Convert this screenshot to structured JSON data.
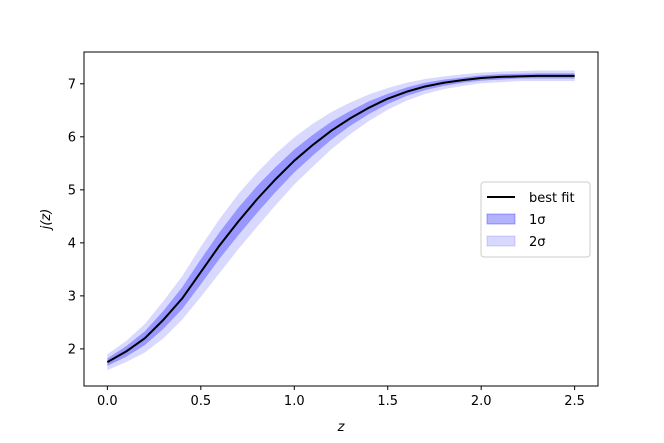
{
  "chart_data": {
    "type": "area",
    "title": "",
    "xlabel": "z",
    "ylabel": "j(z)",
    "xlim": [
      -0.125,
      2.625
    ],
    "ylim": [
      1.3,
      7.6
    ],
    "xticks": [
      0.0,
      0.5,
      1.0,
      1.5,
      2.0,
      2.5
    ],
    "xtick_labels": [
      "0.0",
      "0.5",
      "1.0",
      "1.5",
      "2.0",
      "2.5"
    ],
    "yticks": [
      2,
      3,
      4,
      5,
      6,
      7
    ],
    "ytick_labels": [
      "2",
      "3",
      "4",
      "5",
      "6",
      "7"
    ],
    "grid": false,
    "legend_position": "center-right",
    "x": [
      0.0,
      0.1,
      0.2,
      0.3,
      0.4,
      0.5,
      0.6,
      0.7,
      0.8,
      0.9,
      1.0,
      1.1,
      1.2,
      1.3,
      1.4,
      1.5,
      1.6,
      1.7,
      1.8,
      1.9,
      2.0,
      2.1,
      2.2,
      2.3,
      2.4,
      2.5
    ],
    "series": [
      {
        "name": "best fit",
        "kind": "line",
        "color": "#000000",
        "values": [
          1.75,
          1.95,
          2.2,
          2.55,
          2.95,
          3.45,
          3.95,
          4.4,
          4.82,
          5.2,
          5.55,
          5.85,
          6.12,
          6.35,
          6.55,
          6.72,
          6.85,
          6.95,
          7.02,
          7.07,
          7.11,
          7.13,
          7.14,
          7.15,
          7.15,
          7.15
        ]
      },
      {
        "name": "1σ",
        "kind": "band",
        "color": "#0000ff",
        "opacity": 0.3,
        "lower": [
          1.68,
          1.85,
          2.07,
          2.38,
          2.75,
          3.22,
          3.7,
          4.14,
          4.56,
          4.96,
          5.33,
          5.65,
          5.95,
          6.21,
          6.43,
          6.62,
          6.77,
          6.88,
          6.96,
          7.02,
          7.06,
          7.08,
          7.1,
          7.1,
          7.1,
          7.1
        ],
        "upper": [
          1.82,
          2.05,
          2.33,
          2.72,
          3.16,
          3.69,
          4.2,
          4.66,
          5.07,
          5.43,
          5.76,
          6.04,
          6.29,
          6.49,
          6.67,
          6.81,
          6.93,
          7.02,
          7.08,
          7.12,
          7.16,
          7.18,
          7.19,
          7.2,
          7.2,
          7.2
        ]
      },
      {
        "name": "2σ",
        "kind": "band",
        "color": "#0000ff",
        "opacity": 0.15,
        "lower": [
          1.6,
          1.75,
          1.93,
          2.2,
          2.55,
          2.98,
          3.43,
          3.88,
          4.3,
          4.71,
          5.1,
          5.44,
          5.77,
          6.05,
          6.3,
          6.51,
          6.68,
          6.81,
          6.9,
          6.96,
          7.01,
          7.03,
          7.05,
          7.05,
          7.05,
          7.05
        ],
        "upper": [
          1.9,
          2.15,
          2.47,
          2.9,
          3.37,
          3.93,
          4.45,
          4.92,
          5.32,
          5.68,
          5.99,
          6.25,
          6.47,
          6.65,
          6.8,
          6.92,
          7.02,
          7.09,
          7.14,
          7.18,
          7.21,
          7.23,
          7.24,
          7.25,
          7.25,
          7.25
        ]
      }
    ]
  }
}
